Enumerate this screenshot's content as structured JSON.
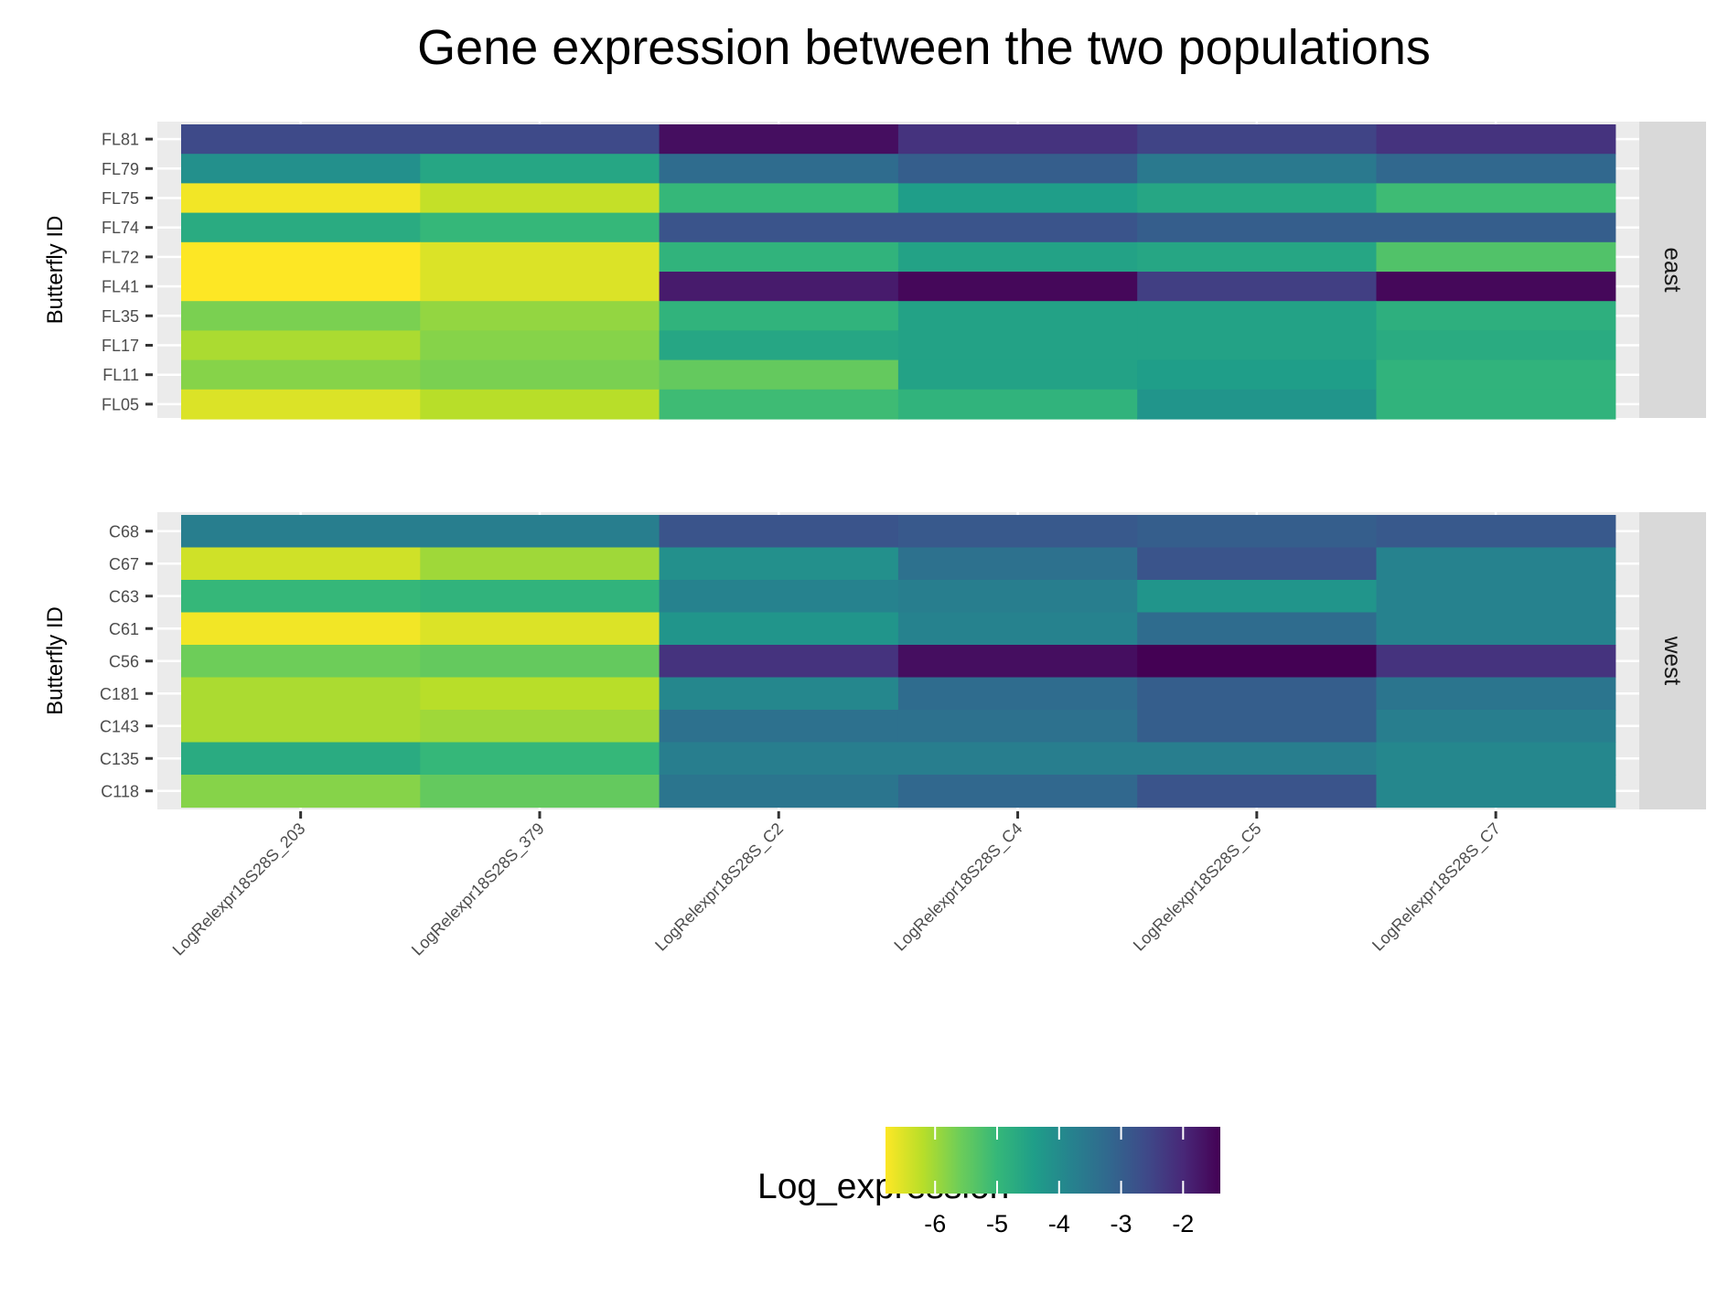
{
  "chart_data": {
    "type": "heatmap",
    "title": "Gene expression between the two populations",
    "ylabel": "Butterfly ID",
    "columns": [
      "LogRelexpr18S28S_203",
      "LogRelexpr18S28S_379",
      "LogRelexpr18S28S_C2",
      "LogRelexpr18S28S_C4",
      "LogRelexpr18S28S_C5",
      "LogRelexpr18S28S_C7"
    ],
    "facets": [
      {
        "label": "east",
        "rows": [
          "FL81",
          "FL79",
          "FL75",
          "FL74",
          "FL72",
          "FL41",
          "FL35",
          "FL17",
          "FL11",
          "FL05"
        ],
        "values": [
          [
            -2.6,
            -2.6,
            -1.6,
            -2.2,
            -2.5,
            -2.2
          ],
          [
            -4.1,
            -4.6,
            -3.3,
            -3.0,
            -3.6,
            -3.2
          ],
          [
            -6.7,
            -6.3,
            -5.0,
            -4.4,
            -4.6,
            -5.1
          ],
          [
            -4.7,
            -5.0,
            -2.8,
            -2.8,
            -3.0,
            -3.0
          ],
          [
            -6.8,
            -6.5,
            -4.9,
            -4.5,
            -4.6,
            -5.3
          ],
          [
            -6.8,
            -6.5,
            -1.8,
            -1.5,
            -2.4,
            -1.5
          ],
          [
            -5.7,
            -5.9,
            -4.9,
            -4.5,
            -4.5,
            -4.8
          ],
          [
            -6.1,
            -5.8,
            -4.6,
            -4.5,
            -4.5,
            -4.7
          ],
          [
            -5.8,
            -5.7,
            -5.5,
            -4.5,
            -4.4,
            -4.9
          ],
          [
            -6.5,
            -6.2,
            -5.1,
            -4.9,
            -4.2,
            -4.9
          ]
        ]
      },
      {
        "label": "west",
        "rows": [
          "C68",
          "C67",
          "C63",
          "C61",
          "C56",
          "C181",
          "C143",
          "C135",
          "C118"
        ],
        "values": [
          [
            -3.7,
            -3.7,
            -2.8,
            -2.9,
            -3.0,
            -2.9
          ],
          [
            -6.4,
            -6.0,
            -4.1,
            -3.4,
            -2.8,
            -3.8
          ],
          [
            -5.0,
            -4.9,
            -3.8,
            -3.7,
            -4.2,
            -3.8
          ],
          [
            -6.7,
            -6.5,
            -4.2,
            -3.8,
            -3.3,
            -3.8
          ],
          [
            -5.6,
            -5.5,
            -2.2,
            -1.6,
            -1.4,
            -2.2
          ],
          [
            -6.1,
            -6.2,
            -3.9,
            -3.3,
            -3.0,
            -3.5
          ],
          [
            -6.1,
            -6.0,
            -3.4,
            -3.4,
            -3.0,
            -3.7
          ],
          [
            -4.7,
            -5.0,
            -3.7,
            -3.7,
            -3.7,
            -3.9
          ],
          [
            -5.8,
            -5.5,
            -3.5,
            -3.2,
            -2.8,
            -3.9
          ]
        ]
      }
    ],
    "colorbar": {
      "title": "Log_expression",
      "range": [
        -6.8,
        -1.4
      ],
      "ticks": [
        -6,
        -5,
        -4,
        -3,
        -2
      ],
      "palette": "viridis-reversed",
      "stops": [
        "#FDE725",
        "#B8DE29",
        "#6DCD59",
        "#35B779",
        "#1F9E89",
        "#26828E",
        "#31688E",
        "#3E4A89",
        "#482878",
        "#440154"
      ]
    }
  },
  "colors": {
    "panel_background": "#EBEBEB",
    "grid": "#FFFFFF",
    "strip_background": "#D9D9D9"
  }
}
